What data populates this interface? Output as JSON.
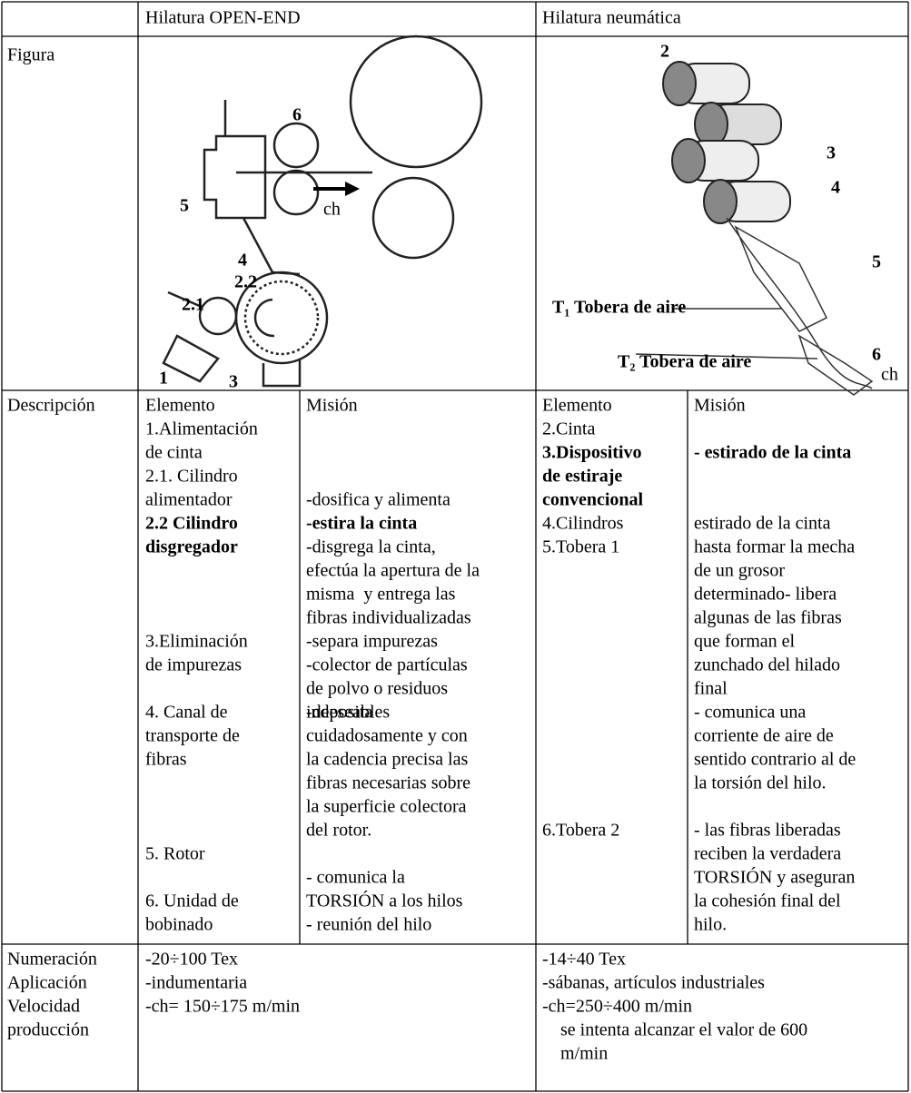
{
  "header": {
    "left": "Hilatura OPEN-END",
    "right": "Hilatura neumática"
  },
  "figure": {
    "row_label": "Figura",
    "left_labels": [
      "6",
      "5",
      "4",
      "2.2",
      "2.1",
      "1",
      "3",
      "ch"
    ],
    "right_labels": [
      "2",
      "3",
      "4",
      "5",
      "T₁ Tobera de aire",
      "T₂ Tobera de aire",
      "6",
      "ch"
    ]
  },
  "description": {
    "row_label": "Descripción",
    "left_heads": [
      "Elemento",
      "Misión"
    ],
    "right_heads": [
      "Elemento",
      "Misión"
    ],
    "left_elements": [
      {
        "lines": [
          "1.Alimentación",
          "de cinta"
        ]
      },
      {
        "lines": [
          "2.1. Cilindro",
          "alimentador"
        ]
      },
      {
        "lines": [
          "2.2 Cilindro",
          "disgregador"
        ],
        "bold": true
      },
      {
        "lines": [
          "3.Eliminación",
          "de impurezas"
        ]
      },
      {
        "lines": [
          "4. Canal de",
          "transporte de",
          "fibras"
        ]
      },
      {
        "lines": [
          "5. Rotor"
        ]
      },
      {
        "lines": [
          "6. Unidad de",
          "bobinado"
        ]
      }
    ],
    "left_missions": [
      {
        "lines": [
          "-dosifica y alimenta"
        ]
      },
      {
        "lines": [
          "-estira la cinta"
        ],
        "bold": true
      },
      {
        "lines": [
          "-disgrega la cinta,",
          "efectúa la apertura de la",
          "misma  y entrega las",
          "fibras individualizadas"
        ]
      },
      {
        "lines": [
          "-separa impurezas"
        ]
      },
      {
        "lines": [
          "-colector de partículas",
          "de polvo o residuos",
          "indeseables"
        ]
      },
      {
        "lines": [
          "-deposita",
          "cuidadosamente y con",
          "la cadencia precisa las",
          "fibras necesarias sobre",
          "la superficie colectora",
          "del rotor."
        ]
      },
      {
        "lines": [
          "- comunica la",
          "TORSIÓN a los hilos"
        ]
      },
      {
        "lines": [
          "- reunión del hilo"
        ]
      }
    ],
    "right_elements": [
      {
        "lines": [
          "2.Cinta"
        ]
      },
      {
        "lines": [
          "3.Dispositivo",
          "de estiraje",
          "convencional"
        ],
        "bold": true
      },
      {
        "lines": [
          "4.Cilindros"
        ]
      },
      {
        "lines": [
          "5.Tobera 1"
        ]
      },
      {
        "lines": [
          "6.Tobera 2"
        ]
      }
    ],
    "right_missions": [
      {
        "lines": [
          "- estirado de la cinta"
        ],
        "bold": true
      },
      {
        "lines": [
          "estirado de la cinta",
          "hasta formar la mecha",
          "de un grosor",
          "determinado- libera",
          "algunas de las fibras",
          "que forman el",
          "zunchado del hilado",
          "final"
        ]
      },
      {
        "lines": [
          "- comunica una",
          "corriente de aire de",
          "sentido contrario al de",
          "la torsión del hilo."
        ]
      },
      {
        "lines": [
          "- las fibras liberadas",
          "reciben la verdadera",
          "TORSIÓN y aseguran",
          "la cohesión final del",
          "hilo."
        ]
      }
    ]
  },
  "specs": {
    "row_label": [
      "Numeración",
      "Aplicación",
      "Velocidad",
      "producción"
    ],
    "left": [
      "-20÷100 Tex",
      "-indumentaria",
      "-ch= 150÷175 m/min"
    ],
    "right": [
      "-14÷40 Tex",
      "-sábanas, artículos industriales",
      "-ch=250÷400 m/min",
      "    se intenta alcanzar el valor de 600",
      "    m/min"
    ]
  }
}
